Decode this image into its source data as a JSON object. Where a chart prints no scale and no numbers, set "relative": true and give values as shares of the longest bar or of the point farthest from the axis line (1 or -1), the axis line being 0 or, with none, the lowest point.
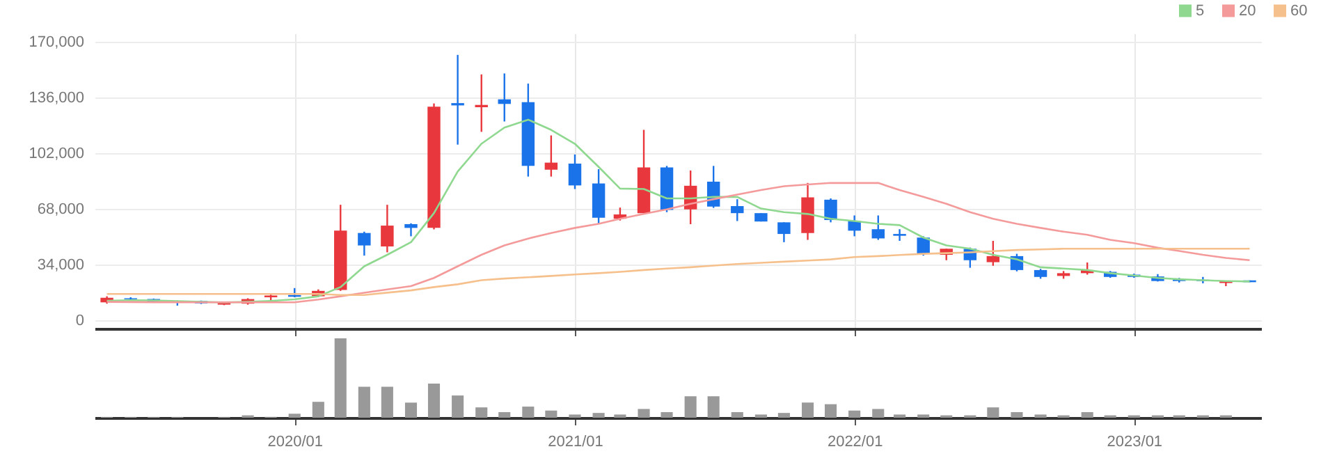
{
  "chart_data": [
    {
      "type": "candlestick",
      "x": [
        "2019-05",
        "2019-06",
        "2019-07",
        "2019-08",
        "2019-09",
        "2019-10",
        "2019-11",
        "2019-12",
        "2020-01",
        "2020-02",
        "2020-03",
        "2020-04",
        "2020-05",
        "2020-06",
        "2020-07",
        "2020-08",
        "2020-09",
        "2020-10",
        "2020-11",
        "2020-12",
        "2021-01",
        "2021-02",
        "2021-03",
        "2021-04",
        "2021-05",
        "2021-06",
        "2021-07",
        "2021-08",
        "2021-09",
        "2021-10",
        "2021-11",
        "2021-12",
        "2022-01",
        "2022-02",
        "2022-03",
        "2022-04",
        "2022-05",
        "2022-06",
        "2022-07",
        "2022-08",
        "2022-09",
        "2022-10",
        "2022-11",
        "2022-12",
        "2023-01",
        "2023-02",
        "2023-03",
        "2023-04",
        "2023-05",
        "2023-06"
      ],
      "ohlc": [
        [
          11000,
          14700,
          10200,
          13800
        ],
        [
          13500,
          14100,
          12600,
          12900
        ],
        [
          13000,
          13300,
          11000,
          11300
        ],
        [
          11800,
          12100,
          9000,
          10700
        ],
        [
          11800,
          12100,
          10000,
          10400
        ],
        [
          9600,
          11300,
          9300,
          11000
        ],
        [
          10200,
          13500,
          9600,
          13000
        ],
        [
          14100,
          15800,
          12400,
          15200
        ],
        [
          15500,
          19700,
          14100,
          14400
        ],
        [
          14700,
          18900,
          14100,
          18000
        ],
        [
          18600,
          70500,
          18000,
          54700
        ],
        [
          53300,
          54100,
          39500,
          45700
        ],
        [
          45100,
          70500,
          41500,
          57800
        ],
        [
          58700,
          59200,
          51300,
          56400
        ],
        [
          56400,
          132300,
          55500,
          130300
        ],
        [
          132500,
          161900,
          107200,
          131100
        ],
        [
          130000,
          150000,
          115000,
          131400
        ],
        [
          134800,
          150600,
          121300,
          132000
        ],
        [
          133100,
          144400,
          87700,
          94200
        ],
        [
          91900,
          112800,
          87700,
          96200
        ],
        [
          95600,
          101200,
          80100,
          82300
        ],
        [
          83500,
          92200,
          59200,
          62600
        ],
        [
          62000,
          68800,
          60900,
          64600
        ],
        [
          65400,
          116200,
          65400,
          93300
        ],
        [
          93300,
          94200,
          66000,
          67400
        ],
        [
          67700,
          91400,
          58700,
          82100
        ],
        [
          84600,
          94200,
          68600,
          69400
        ],
        [
          69700,
          73900,
          60600,
          65400
        ],
        [
          65400,
          65400,
          60300,
          60300
        ],
        [
          59800,
          59800,
          47700,
          52700
        ],
        [
          53300,
          83800,
          49100,
          75000
        ],
        [
          73600,
          74400,
          59800,
          61200
        ],
        [
          60600,
          64000,
          51300,
          54700
        ],
        [
          55600,
          64000,
          49100,
          50000
        ],
        [
          52700,
          55600,
          48500,
          51600
        ],
        [
          50500,
          51300,
          39500,
          40600
        ],
        [
          40000,
          43700,
          36700,
          43700
        ],
        [
          43700,
          44400,
          32100,
          36700
        ],
        [
          35500,
          48500,
          33300,
          39200
        ],
        [
          39200,
          40600,
          29900,
          30700
        ],
        [
          30700,
          31400,
          25400,
          26500
        ],
        [
          27100,
          30100,
          25400,
          28800
        ],
        [
          28800,
          35300,
          27900,
          30700
        ],
        [
          29600,
          30100,
          26000,
          26500
        ],
        [
          27900,
          28500,
          26000,
          26500
        ],
        [
          26800,
          28200,
          23700,
          24000
        ],
        [
          24800,
          25900,
          23100,
          24000
        ],
        [
          24800,
          26500,
          22600,
          24000
        ],
        [
          22800,
          24300,
          20900,
          24300
        ],
        [
          24400,
          24400,
          23300,
          23300
        ]
      ],
      "colors": [
        "#e8383d",
        "#1a73e8",
        "#1a73e8",
        "#1a73e8",
        "#1a73e8",
        "#e8383d",
        "#e8383d",
        "#e8383d",
        "#1a73e8",
        "#e8383d",
        "#e8383d",
        "#1a73e8",
        "#e8383d",
        "#1a73e8",
        "#e8383d",
        "#1a73e8",
        "#e8383d",
        "#1a73e8",
        "#1a73e8",
        "#e8383d",
        "#1a73e8",
        "#1a73e8",
        "#e8383d",
        "#e8383d",
        "#1a73e8",
        "#e8383d",
        "#1a73e8",
        "#1a73e8",
        "#1a73e8",
        "#1a73e8",
        "#e8383d",
        "#1a73e8",
        "#1a73e8",
        "#1a73e8",
        "#1a73e8",
        "#1a73e8",
        "#e8383d",
        "#1a73e8",
        "#e8383d",
        "#1a73e8",
        "#1a73e8",
        "#e8383d",
        "#e8383d",
        "#1a73e8",
        "#1a73e8",
        "#1a73e8",
        "#1a73e8",
        "#1a73e8",
        "#e8383d",
        "#1a73e8"
      ],
      "series": [
        {
          "name": "5",
          "type": "line",
          "color": "#8fd88f",
          "values": [
            12000,
            12300,
            12200,
            11800,
            11300,
            11000,
            11300,
            11900,
            12800,
            14700,
            20300,
            33000,
            40000,
            47700,
            65400,
            90800,
            107700,
            117600,
            122400,
            116200,
            107700,
            93600,
            80400,
            80100,
            74400,
            74400,
            75300,
            75300,
            68200,
            66000,
            64900,
            62000,
            60600,
            58900,
            58100,
            50500,
            45700,
            43700,
            40000,
            37200,
            32400,
            31600,
            30700,
            28800,
            27400,
            25900,
            25100,
            24500,
            24000,
            23700
          ]
        },
        {
          "name": "20",
          "type": "line",
          "color": "#f49a9a",
          "values": [
            11300,
            11200,
            11100,
            11100,
            11000,
            11000,
            11000,
            11000,
            11000,
            12700,
            14700,
            16900,
            18900,
            20900,
            25900,
            33000,
            40000,
            45700,
            49900,
            53300,
            56400,
            58900,
            62000,
            64900,
            67700,
            71100,
            73900,
            76700,
            79500,
            81800,
            82900,
            83800,
            83800,
            83800,
            79500,
            75300,
            71100,
            66000,
            62000,
            58900,
            56400,
            54100,
            52200,
            49100,
            47100,
            44300,
            42300,
            40000,
            38100,
            36700
          ]
        },
        {
          "name": "60",
          "type": "line",
          "color": "#f6c08c",
          "values": [
            16100,
            16100,
            16100,
            16100,
            16100,
            16100,
            16100,
            16100,
            16100,
            16100,
            15500,
            15500,
            16900,
            18300,
            20300,
            22000,
            24500,
            25500,
            26300,
            27100,
            28000,
            28800,
            29600,
            30700,
            31600,
            32400,
            33400,
            34400,
            35100,
            35800,
            36500,
            37200,
            38600,
            39200,
            39900,
            40600,
            41000,
            41500,
            42200,
            42900,
            43300,
            43700,
            43700,
            43700,
            43700,
            43700,
            43700,
            43700,
            43700,
            43700
          ]
        }
      ],
      "xlim": [
        "2019-04-15",
        "2023-06-16"
      ],
      "xticks": [
        {
          "value": "2020-01",
          "label": null
        },
        {
          "value": "2021-01",
          "label": null
        },
        {
          "value": "2022-01",
          "label": null
        },
        {
          "value": "2023-01",
          "label": null
        }
      ],
      "ylim": [
        -5000,
        175000
      ],
      "yticks": [
        0,
        {
          "value": 34000,
          "label": "34,000"
        },
        {
          "value": 68000,
          "label": "68,000"
        },
        {
          "value": 102000,
          "label": "102,000"
        },
        {
          "value": 136000,
          "label": "136,000"
        },
        {
          "value": 170000,
          "label": "170,000"
        }
      ],
      "grid": true,
      "legend": "top right",
      "tick_labels": "y"
    },
    {
      "type": "bar",
      "relative": true,
      "color": "#999999",
      "x": [
        "2019-05",
        "2019-06",
        "2019-07",
        "2019-08",
        "2019-09",
        "2019-10",
        "2019-11",
        "2019-12",
        "2020-01",
        "2020-02",
        "2020-03",
        "2020-04",
        "2020-05",
        "2020-06",
        "2020-07",
        "2020-08",
        "2020-09",
        "2020-10",
        "2020-11",
        "2020-12",
        "2021-01",
        "2021-02",
        "2021-03",
        "2021-04",
        "2021-05",
        "2021-06",
        "2021-07",
        "2021-08",
        "2021-09",
        "2021-10",
        "2021-11",
        "2021-12",
        "2022-01",
        "2022-02",
        "2022-03",
        "2022-04",
        "2022-05",
        "2022-06",
        "2022-07",
        "2022-08",
        "2022-09",
        "2022-10",
        "2022-11",
        "2022-12",
        "2023-01",
        "2023-02",
        "2023-03",
        "2023-04",
        "2023-05"
      ],
      "values": [
        0.01,
        0.01,
        0.01,
        0.01,
        null,
        0.01,
        0.03,
        0.01,
        0.05,
        0.2,
        1,
        0.39,
        0.39,
        0.19,
        0.43,
        0.28,
        0.13,
        0.07,
        0.14,
        0.09,
        0.04,
        0.06,
        0.04,
        0.11,
        0.07,
        0.27,
        0.27,
        0.07,
        0.04,
        0.06,
        0.19,
        0.17,
        0.09,
        0.11,
        0.04,
        0.04,
        0.03,
        0.03,
        0.13,
        0.07,
        0.04,
        0.03,
        0.07,
        0.03,
        0.03,
        0.03,
        0.03,
        0.03,
        0.03
      ],
      "xlim": [
        "2019-04-15",
        "2023-06-16"
      ],
      "xticks": [
        {
          "value": "2020-01",
          "label": "2020/01"
        },
        {
          "value": "2021-01",
          "label": "2021/01"
        },
        {
          "value": "2022-01",
          "label": "2022/01"
        },
        {
          "value": "2023-01",
          "label": "2023/01"
        }
      ],
      "tick_labels": "x"
    }
  ]
}
